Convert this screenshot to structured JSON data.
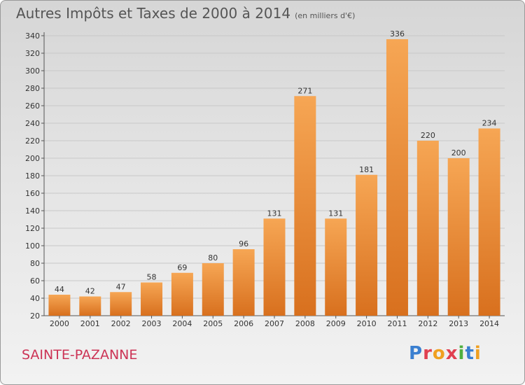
{
  "header": {
    "title": "Autres Impôts et Taxes de 2000 à 2014",
    "unit": "(en milliers d'€)"
  },
  "footer": {
    "commune": "SAINTE-PAZANNE",
    "logo": "Proxiti"
  },
  "colors": {
    "bar_light": "#f6a654",
    "bar_dark": "#d8701e",
    "commune_text": "#cc3355",
    "logo_letters": [
      "#3a7fd0",
      "#e04050",
      "#f0a020",
      "#e04050",
      "#50b040",
      "#3a7fd0",
      "#f0a020"
    ]
  },
  "chart_data": {
    "type": "bar",
    "title": "Autres Impôts et Taxes de 2000 à 2014",
    "subtitle": "(en milliers d'€)",
    "xlabel": "",
    "ylabel": "",
    "categories": [
      "2000",
      "2001",
      "2002",
      "2003",
      "2004",
      "2005",
      "2006",
      "2007",
      "2008",
      "2009",
      "2010",
      "2011",
      "2012",
      "2013",
      "2014"
    ],
    "values": [
      44,
      42,
      47,
      58,
      69,
      80,
      96,
      131,
      271,
      131,
      181,
      336,
      220,
      200,
      234
    ],
    "ylim": [
      20,
      340
    ],
    "yticks": [
      20,
      40,
      60,
      80,
      100,
      120,
      140,
      160,
      180,
      200,
      220,
      240,
      260,
      280,
      300,
      320,
      340
    ],
    "grid": true,
    "legend": "none"
  }
}
